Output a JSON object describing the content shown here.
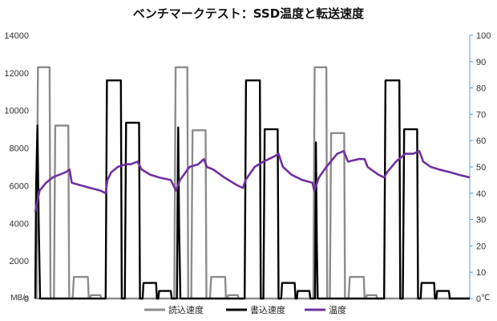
{
  "chart_data": {
    "type": "line",
    "title": "ベンチマークテスト：SSD温度と転送速度",
    "left_axis": {
      "unit": "MB/s",
      "ylim": [
        0,
        14000
      ],
      "ticks": [
        "0",
        "2000",
        "4000",
        "6000",
        "8000",
        "10000",
        "12000",
        "14000"
      ]
    },
    "right_axis": {
      "unit": "℃",
      "ylim": [
        0,
        100
      ],
      "ticks": [
        "0",
        "10",
        "20",
        "30",
        "40",
        "50",
        "60",
        "70",
        "80",
        "90",
        "100"
      ]
    },
    "x_range": [
      0,
      100
    ],
    "grid": false,
    "legend_position": "bottom",
    "series": [
      {
        "name": "読込速度",
        "axis": "left",
        "color": "#8c8c8c",
        "points": [
          [
            0,
            0
          ],
          [
            0.3,
            0
          ],
          [
            0.6,
            12300
          ],
          [
            3.3,
            12300
          ],
          [
            3.5,
            0
          ],
          [
            4.3,
            0
          ],
          [
            4.6,
            9200
          ],
          [
            7.6,
            9200
          ],
          [
            7.8,
            0
          ],
          [
            8.6,
            0
          ],
          [
            8.9,
            1150
          ],
          [
            12.1,
            1150
          ],
          [
            12.3,
            0
          ],
          [
            12.6,
            0
          ],
          [
            12.8,
            180
          ],
          [
            15,
            180
          ],
          [
            15.2,
            0
          ],
          [
            32,
            0
          ],
          [
            32.3,
            12300
          ],
          [
            35,
            12300
          ],
          [
            35.2,
            0
          ],
          [
            35.9,
            0
          ],
          [
            36.2,
            8950
          ],
          [
            39.2,
            8950
          ],
          [
            39.4,
            0
          ],
          [
            40.2,
            0
          ],
          [
            40.5,
            1150
          ],
          [
            43.7,
            1150
          ],
          [
            43.9,
            0
          ],
          [
            44.2,
            0
          ],
          [
            44.4,
            180
          ],
          [
            46.6,
            180
          ],
          [
            46.8,
            0
          ],
          [
            64,
            0
          ],
          [
            64.3,
            12300
          ],
          [
            67,
            12300
          ],
          [
            67.2,
            0
          ],
          [
            67.8,
            0
          ],
          [
            68.1,
            8800
          ],
          [
            71.1,
            8800
          ],
          [
            71.3,
            0
          ],
          [
            72.1,
            0
          ],
          [
            72.4,
            1150
          ],
          [
            75.6,
            1150
          ],
          [
            75.8,
            0
          ],
          [
            76.1,
            0
          ],
          [
            76.3,
            180
          ],
          [
            78.5,
            180
          ],
          [
            78.7,
            0
          ],
          [
            100,
            0
          ]
        ]
      },
      {
        "name": "書込速度",
        "axis": "left",
        "color": "#000000",
        "points": [
          [
            0,
            0
          ],
          [
            0.2,
            6000
          ],
          [
            0.5,
            9200
          ],
          [
            0.8,
            4000
          ],
          [
            1.1,
            0
          ],
          [
            16.2,
            0
          ],
          [
            16.5,
            11600
          ],
          [
            19.7,
            11600
          ],
          [
            19.9,
            0
          ],
          [
            20.6,
            0
          ],
          [
            20.9,
            9350
          ],
          [
            23.9,
            9350
          ],
          [
            24.1,
            0
          ],
          [
            24.7,
            0
          ],
          [
            24.9,
            830
          ],
          [
            27.8,
            830
          ],
          [
            28,
            0
          ],
          [
            28.3,
            0
          ],
          [
            28.5,
            400
          ],
          [
            31.2,
            400
          ],
          [
            31.4,
            0
          ],
          [
            32.6,
            0
          ],
          [
            32.9,
            9100
          ],
          [
            33.1,
            4000
          ],
          [
            33.4,
            0
          ],
          [
            48.2,
            0
          ],
          [
            48.5,
            11600
          ],
          [
            51.7,
            11600
          ],
          [
            51.9,
            0
          ],
          [
            52.5,
            0
          ],
          [
            52.8,
            9000
          ],
          [
            55.8,
            9000
          ],
          [
            56,
            0
          ],
          [
            56.6,
            0
          ],
          [
            56.8,
            830
          ],
          [
            59.7,
            830
          ],
          [
            59.9,
            0
          ],
          [
            60.2,
            0
          ],
          [
            60.4,
            400
          ],
          [
            63.1,
            400
          ],
          [
            63.3,
            0
          ],
          [
            64.4,
            0
          ],
          [
            64.6,
            8300
          ],
          [
            64.8,
            3000
          ],
          [
            65,
            0
          ],
          [
            80.3,
            0
          ],
          [
            80.6,
            11600
          ],
          [
            83.8,
            11600
          ],
          [
            84,
            0
          ],
          [
            84.6,
            0
          ],
          [
            84.9,
            9000
          ],
          [
            87.9,
            9000
          ],
          [
            88.1,
            0
          ],
          [
            88.7,
            0
          ],
          [
            88.9,
            830
          ],
          [
            91.8,
            830
          ],
          [
            92,
            0
          ],
          [
            92.3,
            0
          ],
          [
            92.5,
            400
          ],
          [
            95.2,
            400
          ],
          [
            95.4,
            0
          ],
          [
            100,
            0
          ]
        ]
      },
      {
        "name": "温度",
        "axis": "right",
        "color": "#7030a0",
        "points": [
          [
            0,
            33
          ],
          [
            1,
            41
          ],
          [
            2.5,
            44
          ],
          [
            4,
            46
          ],
          [
            5.5,
            47
          ],
          [
            7,
            48
          ],
          [
            7.9,
            49
          ],
          [
            8.4,
            44
          ],
          [
            10.5,
            43
          ],
          [
            12.7,
            42
          ],
          [
            15,
            41
          ],
          [
            16.2,
            40
          ],
          [
            16.6,
            45
          ],
          [
            17.5,
            48
          ],
          [
            19,
            50
          ],
          [
            20.8,
            51
          ],
          [
            22,
            51
          ],
          [
            23.5,
            52
          ],
          [
            24.5,
            49
          ],
          [
            26.5,
            47
          ],
          [
            28.5,
            46
          ],
          [
            31.2,
            45
          ],
          [
            32.4,
            41
          ],
          [
            33.3,
            45
          ],
          [
            35.5,
            50
          ],
          [
            37.5,
            51
          ],
          [
            38.8,
            53
          ],
          [
            39.5,
            50
          ],
          [
            41,
            49
          ],
          [
            43.5,
            46
          ],
          [
            46.5,
            43
          ],
          [
            47.8,
            42
          ],
          [
            48.4,
            45
          ],
          [
            50.5,
            50
          ],
          [
            52.5,
            52
          ],
          [
            55,
            54
          ],
          [
            56,
            55
          ],
          [
            57,
            50
          ],
          [
            59,
            47
          ],
          [
            61.5,
            45
          ],
          [
            63.8,
            44
          ],
          [
            64.2,
            41
          ],
          [
            65.3,
            46
          ],
          [
            67,
            50
          ],
          [
            69.5,
            55
          ],
          [
            71,
            56
          ],
          [
            72,
            52
          ],
          [
            74.5,
            53
          ],
          [
            75.8,
            53
          ],
          [
            76.5,
            50
          ],
          [
            79,
            47
          ],
          [
            80.3,
            46
          ],
          [
            81,
            48
          ],
          [
            83,
            52
          ],
          [
            85.2,
            55
          ],
          [
            87,
            55
          ],
          [
            88.4,
            56
          ],
          [
            89.3,
            52
          ],
          [
            91,
            50
          ],
          [
            93,
            49
          ],
          [
            95.5,
            48
          ],
          [
            97.5,
            47
          ],
          [
            100,
            46
          ]
        ]
      }
    ]
  }
}
